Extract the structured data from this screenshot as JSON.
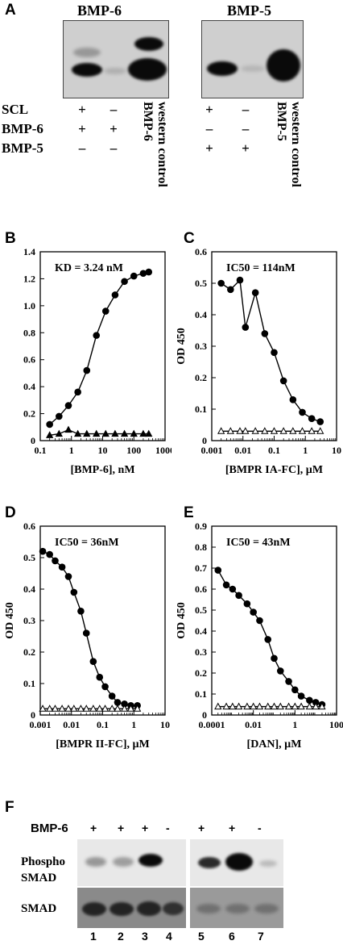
{
  "panelA": {
    "letter": "A",
    "blot_titles": [
      "BMP-6",
      "BMP-5"
    ],
    "rows": [
      {
        "label": "SCL",
        "left": [
          "+",
          "–"
        ],
        "right": [
          "+",
          "–"
        ]
      },
      {
        "label": "BMP-6",
        "left": [
          "+",
          "+"
        ],
        "right": [
          "–",
          "–"
        ]
      },
      {
        "label": "BMP-5",
        "left": [
          "–",
          "–"
        ],
        "right": [
          "+",
          "+"
        ]
      }
    ],
    "controls": [
      {
        "line1": "BMP-6",
        "line2": "western control"
      },
      {
        "line1": "BMP-5",
        "line2": "western control"
      }
    ]
  },
  "chart_data": [
    {
      "panel": "B",
      "type": "scatter",
      "annotation": "KD = 3.24 nM",
      "xlabel": "[BMP-6], nM",
      "ylabel": "",
      "xscale": "log",
      "xlim": [
        0.1,
        1000
      ],
      "ylim": [
        0,
        1.4
      ],
      "xticks": [
        "0.1",
        "1",
        "10",
        "100",
        "1000"
      ],
      "yticks": [
        "0",
        "0.2",
        "0.4",
        "0.6",
        "0.8",
        "1.0",
        "1.2",
        "1.4"
      ],
      "series": [
        {
          "marker": "filled-circle",
          "x": [
            0.2,
            0.4,
            0.8,
            1.6,
            3.1,
            6.3,
            12.5,
            25,
            50,
            100,
            200,
            300
          ],
          "y": [
            0.12,
            0.18,
            0.26,
            0.36,
            0.52,
            0.78,
            0.96,
            1.08,
            1.18,
            1.22,
            1.24,
            1.25
          ]
        },
        {
          "marker": "filled-triangle",
          "x": [
            0.2,
            0.4,
            0.8,
            1.6,
            3.1,
            6.3,
            12.5,
            25,
            50,
            100,
            200,
            300
          ],
          "y": [
            0.04,
            0.05,
            0.08,
            0.05,
            0.05,
            0.05,
            0.05,
            0.05,
            0.05,
            0.05,
            0.05,
            0.05
          ]
        }
      ]
    },
    {
      "panel": "C",
      "type": "scatter",
      "annotation": "IC50 = 114nM",
      "xlabel": "[BMPR IA-FC], µM",
      "ylabel": "OD 450",
      "xscale": "log",
      "xlim": [
        0.001,
        10
      ],
      "ylim": [
        0,
        0.6
      ],
      "xticks": [
        "0.001",
        "0.01",
        "0.1",
        "1",
        "10"
      ],
      "yticks": [
        "0",
        "0.1",
        "0.2",
        "0.3",
        "0.4",
        "0.5",
        "0.6"
      ],
      "series": [
        {
          "marker": "filled-circle",
          "x": [
            0.002,
            0.004,
            0.008,
            0.012,
            0.025,
            0.05,
            0.1,
            0.2,
            0.4,
            0.8,
            1.6,
            3
          ],
          "y": [
            0.5,
            0.48,
            0.51,
            0.36,
            0.47,
            0.34,
            0.28,
            0.19,
            0.13,
            0.09,
            0.07,
            0.06
          ]
        },
        {
          "marker": "open-triangle",
          "x": [
            0.002,
            0.004,
            0.008,
            0.012,
            0.025,
            0.05,
            0.1,
            0.2,
            0.4,
            0.8,
            1.6,
            3
          ],
          "y": [
            0.03,
            0.03,
            0.03,
            0.03,
            0.03,
            0.03,
            0.03,
            0.03,
            0.03,
            0.03,
            0.03,
            0.03
          ]
        }
      ]
    },
    {
      "panel": "D",
      "type": "scatter",
      "annotation": "IC50 = 36nM",
      "xlabel": "[BMPR II-FC], µM",
      "ylabel": "OD 450",
      "xscale": "log",
      "xlim": [
        0.001,
        10
      ],
      "ylim": [
        0,
        0.6
      ],
      "xticks": [
        "0.001",
        "0.01",
        "0.1",
        "1",
        "10"
      ],
      "yticks": [
        "0",
        "0.1",
        "0.2",
        "0.3",
        "0.4",
        "0.5",
        "0.6"
      ],
      "series": [
        {
          "marker": "filled-circle",
          "x": [
            0.0012,
            0.002,
            0.003,
            0.005,
            0.008,
            0.012,
            0.02,
            0.03,
            0.05,
            0.08,
            0.12,
            0.2,
            0.3,
            0.5,
            0.8,
            1.3
          ],
          "y": [
            0.52,
            0.51,
            0.49,
            0.47,
            0.44,
            0.39,
            0.33,
            0.26,
            0.17,
            0.12,
            0.09,
            0.06,
            0.04,
            0.035,
            0.03,
            0.03
          ]
        },
        {
          "marker": "open-triangle",
          "x": [
            0.0012,
            0.002,
            0.003,
            0.005,
            0.008,
            0.012,
            0.02,
            0.03,
            0.05,
            0.08,
            0.12,
            0.2,
            0.3,
            0.5,
            0.8,
            1.3
          ],
          "y": [
            0.02,
            0.02,
            0.02,
            0.02,
            0.02,
            0.02,
            0.02,
            0.02,
            0.02,
            0.02,
            0.02,
            0.02,
            0.02,
            0.02,
            0.02,
            0.02
          ]
        }
      ]
    },
    {
      "panel": "E",
      "type": "scatter",
      "annotation": "IC50 = 43nM",
      "xlabel": "[DAN], µM",
      "ylabel": "OD 450",
      "xscale": "log",
      "xlim": [
        0.0001,
        100
      ],
      "ylim": [
        0,
        0.9
      ],
      "xticks": [
        "0.0001",
        "0.01",
        "1",
        "100"
      ],
      "yticks": [
        "0",
        "0.1",
        "0.2",
        "0.3",
        "0.4",
        "0.5",
        "0.6",
        "0.7",
        "0.8",
        "0.9"
      ],
      "series": [
        {
          "marker": "filled-circle",
          "x": [
            0.0002,
            0.0005,
            0.001,
            0.002,
            0.005,
            0.01,
            0.02,
            0.05,
            0.1,
            0.2,
            0.5,
            1,
            2,
            5,
            10,
            20
          ],
          "y": [
            0.69,
            0.62,
            0.6,
            0.57,
            0.53,
            0.49,
            0.45,
            0.36,
            0.27,
            0.21,
            0.16,
            0.12,
            0.09,
            0.07,
            0.06,
            0.05
          ]
        },
        {
          "marker": "open-triangle",
          "x": [
            0.0002,
            0.0005,
            0.001,
            0.002,
            0.005,
            0.01,
            0.02,
            0.05,
            0.1,
            0.2,
            0.5,
            1,
            2,
            5,
            10,
            20
          ],
          "y": [
            0.04,
            0.04,
            0.04,
            0.04,
            0.04,
            0.04,
            0.04,
            0.04,
            0.04,
            0.04,
            0.04,
            0.04,
            0.04,
            0.04,
            0.04,
            0.04
          ]
        }
      ]
    }
  ],
  "panelF": {
    "letter": "F",
    "treatment_label": "BMP-6",
    "signs": [
      "+",
      "+",
      "+",
      "-",
      "+",
      "+",
      "-"
    ],
    "row1_label_line1": "Phospho",
    "row1_label_line2": "SMAD",
    "row2_label": "SMAD",
    "lanes": [
      "1",
      "2",
      "3",
      "4",
      "5",
      "6",
      "7"
    ]
  },
  "colors": {
    "ink": "#000000",
    "blot_bg": "#cfcfcf",
    "band": "#0a0a0a"
  }
}
